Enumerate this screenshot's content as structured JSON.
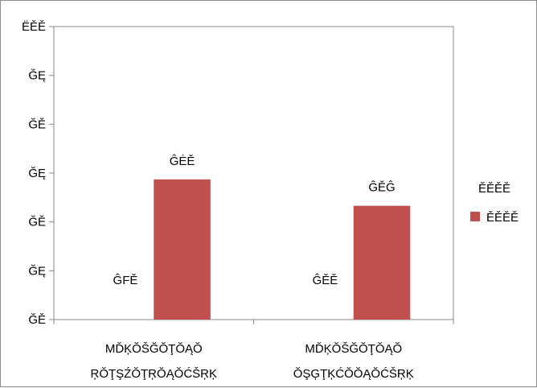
{
  "chart_data": {
    "type": "bar",
    "ytick_labels": [
      "ĞĚ",
      "ĞĘ",
      "ĞĚ",
      "ĞĘ",
      "ĞĚ",
      "ĞĘ",
      "ËĚĚ"
    ],
    "yticks": [
      0,
      1,
      2,
      3,
      4,
      5,
      6
    ],
    "ylim": [
      0,
      6
    ],
    "categories": [
      [
        "ΜĎĶŎŠĞŎŢŎĄŎ",
        "ŖŎŢŞŹŎŢŖŎĄŎĆŠŖĶ"
      ],
      [
        "ΜĎĶŎŠĞŎŢŎĄŎ",
        "ŎŞĢŢĶĆŎŎĄŎĆŠŖĶ"
      ]
    ],
    "series": [
      {
        "name": "ĚĚĚĚ",
        "color": "#c0504d",
        "values": [
          0,
          0
        ],
        "labels": [
          "ĜFĚ",
          "ĜĚĚ"
        ]
      },
      {
        "name": "ĚĚĚĚ",
        "color": "#c0504d",
        "values": [
          2.87,
          2.33
        ],
        "labels": [
          "ĜĖĚ",
          "ĜĚĜ"
        ]
      }
    ],
    "legend_position": "right",
    "grid": false
  }
}
